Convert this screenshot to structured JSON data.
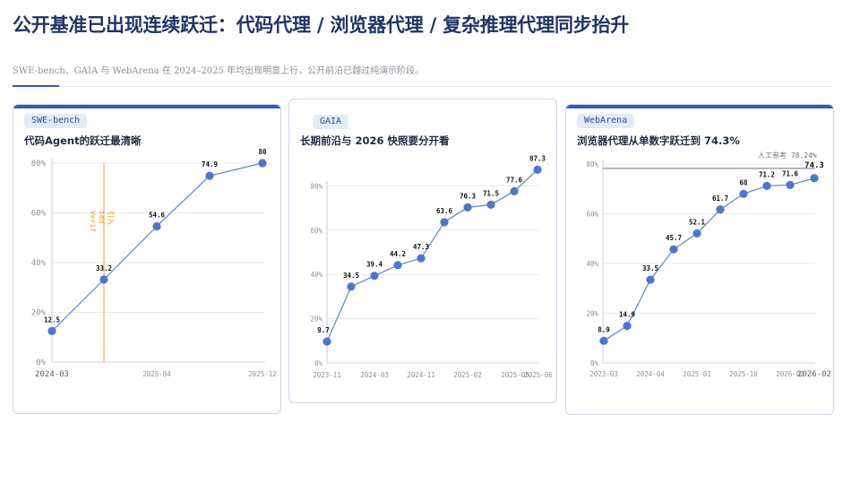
{
  "header": {
    "title": "公开基准已出现连续跃迁：代码代理 / 浏览器代理 / 复杂推理代理同步抬升",
    "subtitle": "SWE-bench、GAIA 与 WebArena 在 2024–2025 年均出现明显上行，公开前沿已越过纯演示阶段。"
  },
  "colors": {
    "accent": "#2f5db8",
    "line": "#5a86cf",
    "marker": "#4a78cc",
    "annotation": "#e3a23a"
  },
  "cards": [
    {
      "tag": "SWE-bench",
      "title": "代码Agent的跃迁最清晰"
    },
    {
      "tag": "GAIA",
      "title": "长期前沿与 2026 快照要分开看"
    },
    {
      "tag": "WebArena",
      "title": "浏览器代理从单数字跃迁到 74.3%"
    }
  ],
  "chart_data": [
    {
      "type": "line",
      "x": [
        "2024-03",
        "2024-08",
        "2025-04",
        "2025-09",
        "2025-12"
      ],
      "values": [
        12.5,
        33.2,
        54.6,
        74.9,
        80
      ],
      "value_labels": [
        "12.5",
        "33.2",
        "54.6",
        "74.9",
        "80"
      ],
      "x_tick_labels": [
        "2024-03",
        "2025-04",
        "2025-12"
      ],
      "y_ticks": [
        "0%",
        "20%",
        "40%",
        "60%",
        "80%"
      ],
      "ylim": [
        0,
        80
      ],
      "grid": true,
      "annotation": {
        "text": "Verif\nied\n引入",
        "x": "2024-08"
      }
    },
    {
      "type": "line",
      "x": [
        "2023-11",
        "2024-01",
        "2024-03",
        "2024-06",
        "2024-11",
        "2025-01",
        "2025-02",
        "2025-04",
        "2025-05",
        "2025-06"
      ],
      "values": [
        9.7,
        34.5,
        39.4,
        44.2,
        47.3,
        63.6,
        70.3,
        71.5,
        77.6,
        87.3
      ],
      "value_labels": [
        "9.7",
        "34.5",
        "39.4",
        "44.2",
        "47.3",
        "63.6",
        "70.3",
        "71.5",
        "77.6",
        "87.3"
      ],
      "x_tick_labels": [
        "2023-11",
        "2024-03",
        "2024-11",
        "2025-02",
        "2025-05",
        "2025-06"
      ],
      "y_ticks": [
        "0%",
        "20%",
        "40%",
        "60%",
        "80%"
      ],
      "ylim": [
        0,
        90
      ],
      "grid": true
    },
    {
      "type": "line",
      "x": [
        "2023-03",
        "2023-10",
        "2024-04",
        "2024-08",
        "2025-01",
        "2025-06",
        "2025-10",
        "2025-12",
        "2026-01",
        "2026-02"
      ],
      "values": [
        8.9,
        14.9,
        33.5,
        45.7,
        52.1,
        61.7,
        68,
        71.2,
        71.6,
        74.3
      ],
      "value_labels": [
        "8.9",
        "14.9",
        "33.5",
        "45.7",
        "52.1",
        "61.7",
        "68",
        "71.2",
        "71.6",
        "74.3"
      ],
      "x_tick_labels": [
        "2023-03",
        "2024-04",
        "2025-01",
        "2025-10",
        "2026-02",
        "2026-02"
      ],
      "y_ticks": [
        "0%",
        "20%",
        "40%",
        "60%",
        "80%"
      ],
      "ylim": [
        0,
        80
      ],
      "grid": true,
      "reference": {
        "text": "人工参考 78.24%",
        "value": 78.24
      }
    }
  ]
}
